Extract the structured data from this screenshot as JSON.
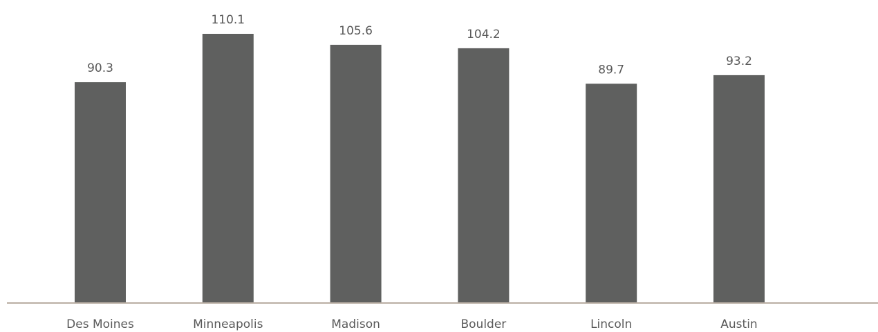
{
  "chart_data": {
    "type": "bar",
    "title": "",
    "xlabel": "",
    "ylabel": "",
    "categories": [
      "Des Moines",
      "Minneapolis",
      "Madison",
      "Boulder",
      "Lincoln",
      "Austin"
    ],
    "values": [
      90.3,
      110.1,
      105.6,
      104.2,
      89.7,
      93.2
    ],
    "data_labels": [
      "90.3",
      "110.1",
      "105.6",
      "104.2",
      "89.7",
      "93.2"
    ],
    "ylim": [
      0,
      110.1
    ],
    "grid": false,
    "legend": "none",
    "colors": {
      "bar": "#5f605f",
      "axis": "#b9aea3",
      "text": "#595959"
    }
  }
}
